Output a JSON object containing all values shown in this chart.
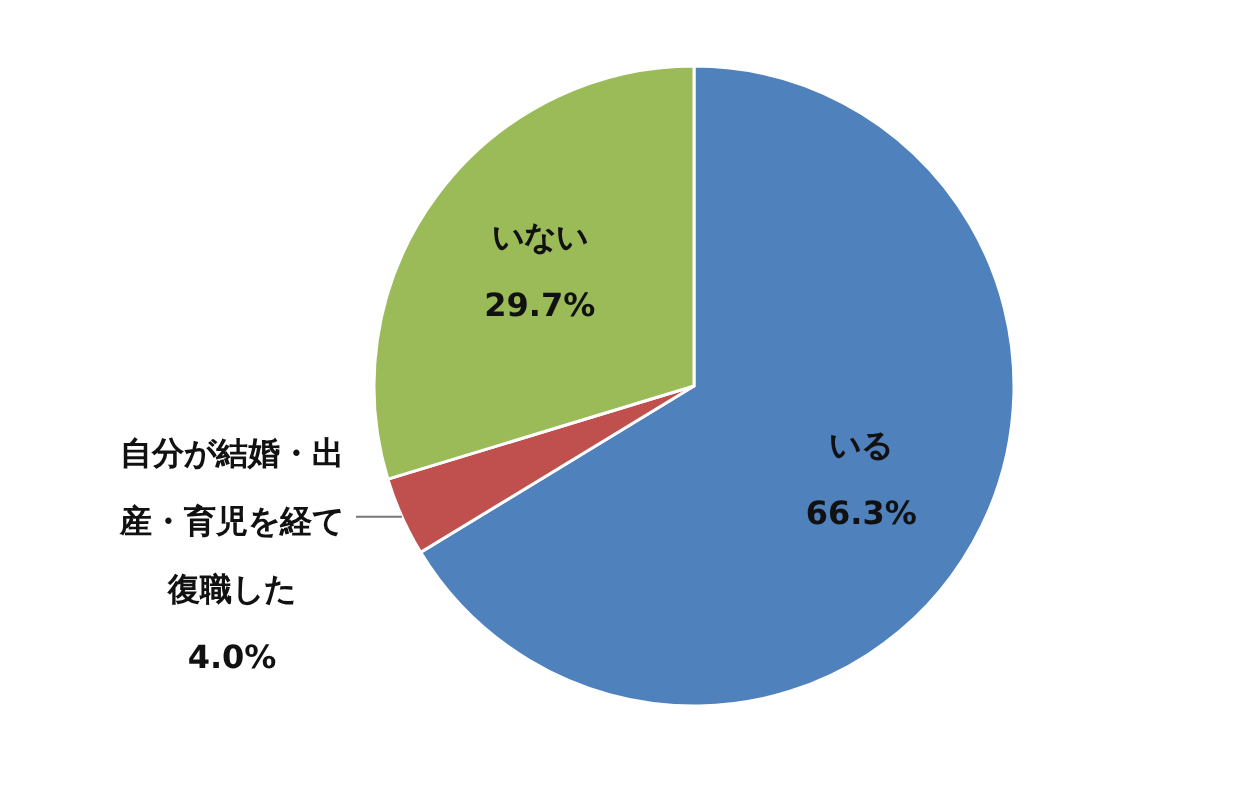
{
  "chart_data": {
    "type": "pie",
    "categories": [
      "いる",
      "自分が結婚・出産・育児を経て復職した",
      "いない"
    ],
    "values": [
      66.3,
      4.0,
      29.7
    ],
    "colors": [
      "#4f81bd",
      "#c0504d",
      "#9bbb59"
    ],
    "value_labels": [
      "66.3%",
      "4.0%",
      "29.7%"
    ]
  }
}
